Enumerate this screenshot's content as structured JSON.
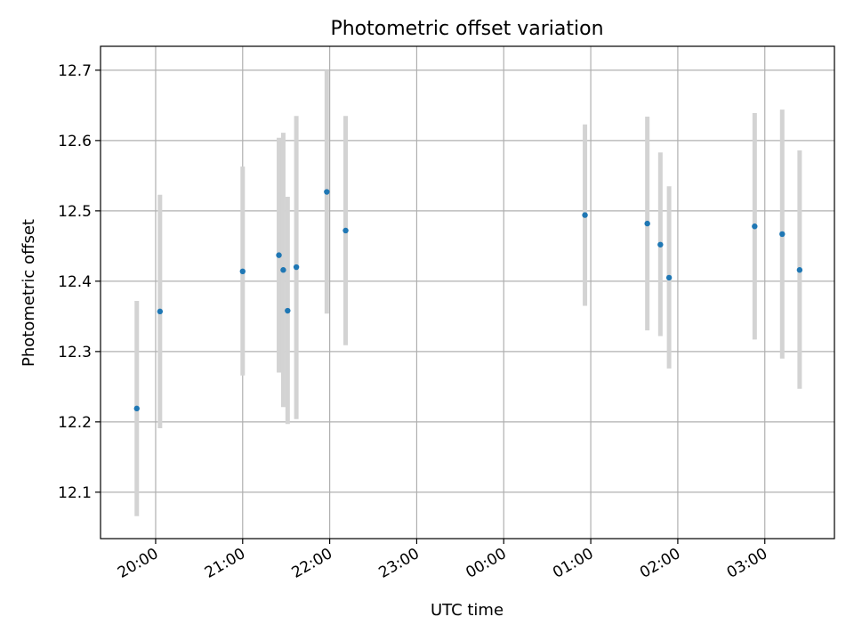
{
  "chart_data": {
    "type": "scatter",
    "title": "Photometric offset variation",
    "xlabel": "UTC time",
    "ylabel": "Photometric offset",
    "x_axis": "time",
    "xlim": [
      "19:22",
      "03:48"
    ],
    "ylim": [
      12.034,
      12.734
    ],
    "x_ticks": [
      "20:00",
      "21:00",
      "22:00",
      "23:00",
      "00:00",
      "01:00",
      "02:00",
      "03:00"
    ],
    "y_ticks": [
      "12.1",
      "12.2",
      "12.3",
      "12.4",
      "12.5",
      "12.6",
      "12.7"
    ],
    "grid": true,
    "series": [
      {
        "marker_color": "#1f77b4",
        "errorbar_color": "#d3d3d3",
        "points": [
          {
            "t": "19:47",
            "y": 12.219,
            "err_low": 12.066,
            "err_high": 12.372
          },
          {
            "t": "20:03",
            "y": 12.357,
            "err_low": 12.191,
            "err_high": 12.523
          },
          {
            "t": "21:00",
            "y": 12.414,
            "err_low": 12.266,
            "err_high": 12.563
          },
          {
            "t": "21:25",
            "y": 12.437,
            "err_low": 12.27,
            "err_high": 12.604
          },
          {
            "t": "21:28",
            "y": 12.416,
            "err_low": 12.221,
            "err_high": 12.611
          },
          {
            "t": "21:31",
            "y": 12.358,
            "err_low": 12.197,
            "err_high": 12.52
          },
          {
            "t": "21:37",
            "y": 12.42,
            "err_low": 12.204,
            "err_high": 12.635
          },
          {
            "t": "21:58",
            "y": 12.527,
            "err_low": 12.354,
            "err_high": 12.7
          },
          {
            "t": "22:11",
            "y": 12.472,
            "err_low": 12.309,
            "err_high": 12.635
          },
          {
            "t": "00:56",
            "y": 12.494,
            "err_low": 12.365,
            "err_high": 12.623
          },
          {
            "t": "01:39",
            "y": 12.482,
            "err_low": 12.33,
            "err_high": 12.634
          },
          {
            "t": "01:48",
            "y": 12.452,
            "err_low": 12.322,
            "err_high": 12.583
          },
          {
            "t": "01:54",
            "y": 12.405,
            "err_low": 12.276,
            "err_high": 12.535
          },
          {
            "t": "02:53",
            "y": 12.478,
            "err_low": 12.317,
            "err_high": 12.639
          },
          {
            "t": "03:12",
            "y": 12.467,
            "err_low": 12.29,
            "err_high": 12.644
          },
          {
            "t": "03:24",
            "y": 12.416,
            "err_low": 12.247,
            "err_high": 12.586
          }
        ]
      }
    ]
  }
}
